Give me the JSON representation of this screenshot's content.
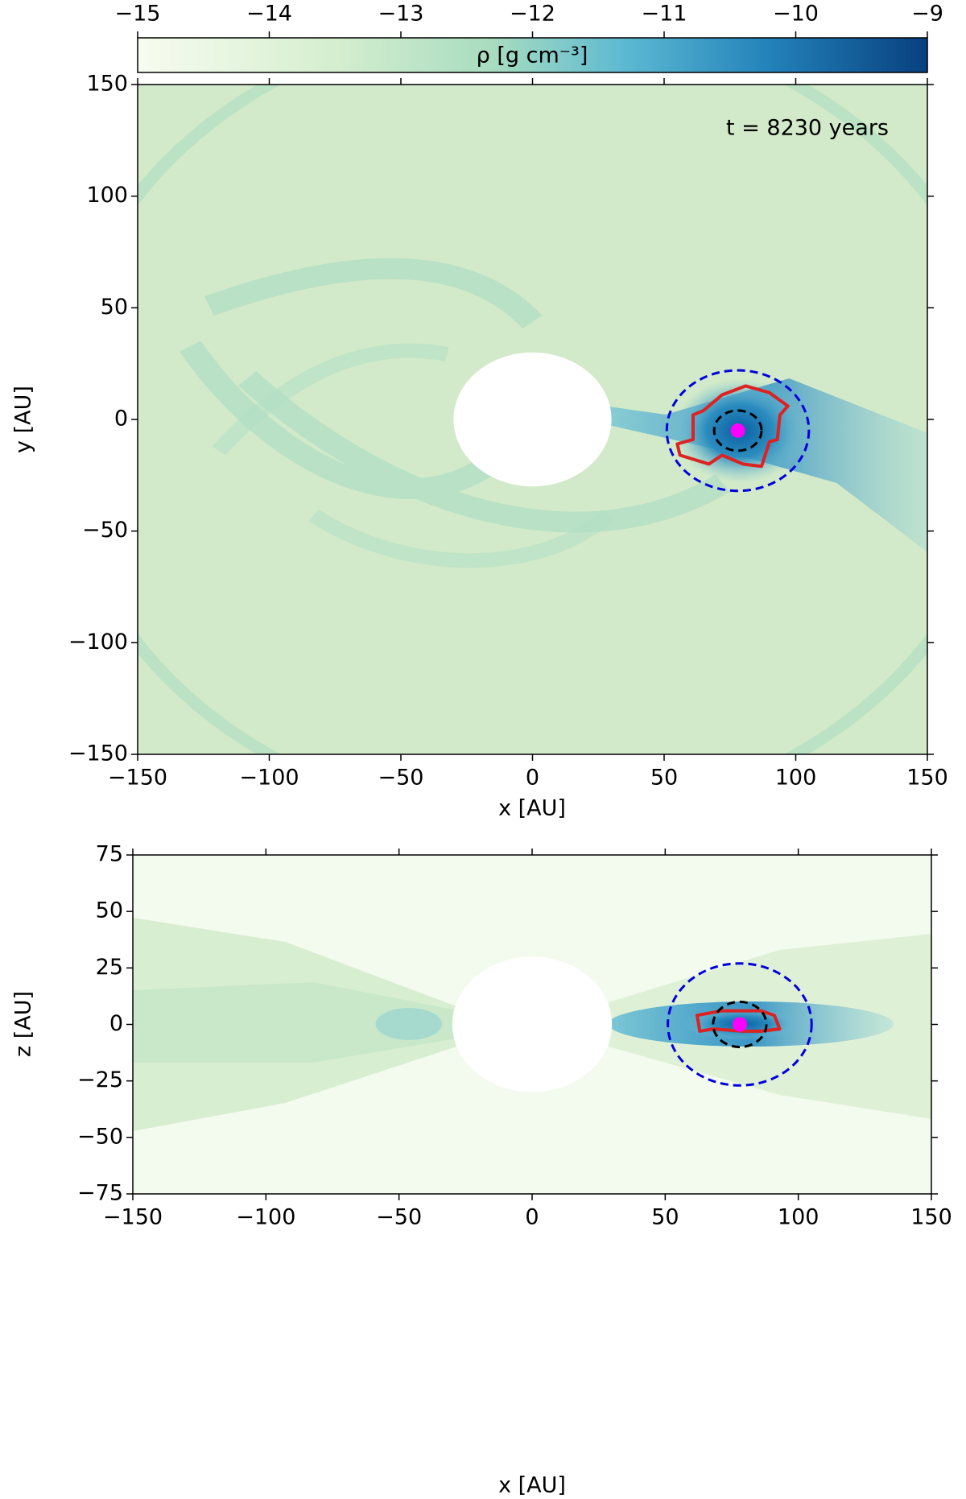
{
  "chart_data": [
    {
      "type": "density-map",
      "annotation": "t = 8230 years",
      "xlabel": "x [AU]",
      "ylabel": "y [AU]",
      "xlim": [
        -150,
        150
      ],
      "ylim": [
        -150,
        150
      ],
      "xticks": [
        {
          "value": -150,
          "label": "−150"
        },
        {
          "value": -100,
          "label": "−100"
        },
        {
          "value": -50,
          "label": "−50"
        },
        0,
        50,
        100,
        150
      ],
      "yticks": [
        {
          "value": -150,
          "label": "−150"
        },
        {
          "value": -100,
          "label": "−100"
        },
        {
          "value": -50,
          "label": "−50"
        },
        0,
        50,
        100,
        150
      ],
      "colorbar": {
        "label": "ρ [g cm⁻³]",
        "lim": [
          -15,
          -9
        ],
        "ticks": [
          {
            "value": -15,
            "label": "−15"
          },
          {
            "value": -14,
            "label": "−14"
          },
          {
            "value": -13,
            "label": "−13"
          },
          {
            "value": -12,
            "label": "−12"
          },
          {
            "value": -11,
            "label": "−11"
          },
          {
            "value": -10,
            "label": "−10"
          },
          {
            "value": -9,
            "label": "−9"
          }
        ]
      },
      "inner_radius": 30,
      "planet": {
        "x": 78,
        "y": -5,
        "color": "#ff00ff"
      },
      "circles": [
        {
          "center": [
            78,
            -5
          ],
          "radius": 27,
          "color": "#0000dd",
          "linestyle": "dashed"
        },
        {
          "center": [
            78,
            -5
          ],
          "radius": 9,
          "color": "#000000",
          "linestyle": "dashed"
        }
      ],
      "contour": {
        "color": "#dd2222",
        "x": [
          61,
          65,
          72,
          81,
          90,
          97,
          94,
          93,
          90,
          87,
          80,
          72,
          67,
          56,
          55,
          61
        ],
        "y": [
          2,
          4,
          11,
          15,
          12,
          6,
          2,
          -9,
          -10,
          -21,
          -20,
          -16,
          -20,
          -16,
          -11,
          -9
        ]
      }
    },
    {
      "type": "density-map",
      "xlabel": "x [AU]",
      "ylabel": "z [AU]",
      "xlim": [
        -150,
        150
      ],
      "ylim": [
        -75,
        75
      ],
      "xticks": [
        {
          "value": -150,
          "label": "−150"
        },
        {
          "value": -100,
          "label": "−100"
        },
        {
          "value": -50,
          "label": "−50"
        },
        0,
        50,
        100,
        150
      ],
      "yticks": [
        {
          "value": -75,
          "label": "−75"
        },
        {
          "value": -50,
          "label": "−50"
        },
        {
          "value": -25,
          "label": "−25"
        },
        0,
        25,
        50,
        75
      ],
      "inner_radius": 30,
      "planet": {
        "x": 78,
        "y": 0,
        "color": "#ff00ff"
      },
      "circles": [
        {
          "center": [
            78,
            0
          ],
          "radius": 27,
          "color": "#0000dd",
          "linestyle": "dashed"
        },
        {
          "center": [
            78,
            0
          ],
          "radius": 10,
          "color": "#000000",
          "linestyle": "dashed"
        }
      ],
      "contour": {
        "color": "#dd2222",
        "x": [
          62,
          71,
          86,
          91,
          93,
          86,
          79,
          68,
          63
        ],
        "y": [
          4,
          6,
          6,
          4,
          -2,
          -3,
          -3,
          -2,
          -3
        ]
      }
    }
  ]
}
